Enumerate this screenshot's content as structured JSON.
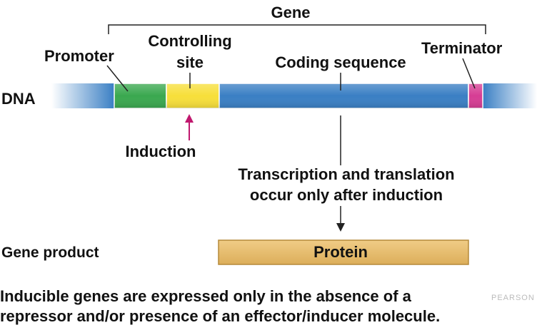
{
  "gene_label": "Gene",
  "dna_label": "DNA",
  "segments": {
    "promoter": "Promoter",
    "controlling_site_line1": "Controlling",
    "controlling_site_line2": "site",
    "coding_sequence": "Coding sequence",
    "terminator": "Terminator"
  },
  "induction_label": "Induction",
  "process_line1": "Transcription and translation",
  "process_line2": "occur only after induction",
  "gene_product_label": "Gene product",
  "protein_label": "Protein",
  "caption": {
    "line1": "Inducible genes are expressed only in the absence of a",
    "line2": "repressor and/or presence of an effector/inducer molecule."
  },
  "watermark": "PEARSON",
  "colors": {
    "dna": "#3a7fc4",
    "promoter": "#3aa84f",
    "controlling_site": "#f7df3a",
    "terminator": "#d63d94",
    "induction_arrow": "#c0186e",
    "protein": "#e7bb6a"
  }
}
